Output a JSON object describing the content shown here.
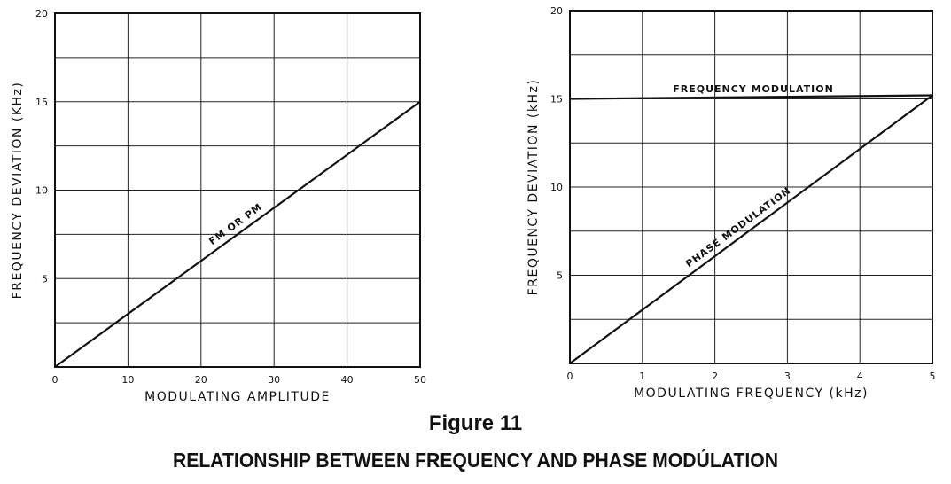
{
  "figure": {
    "number": "Figure 11",
    "title": "RELATIONSHIP BETWEEN FREQUENCY AND PHASE MODÚLATION"
  },
  "chart_data": [
    {
      "type": "line",
      "xlabel": "MODULATING AMPLITUDE",
      "ylabel": "FREQUENCY DEVIATION (KHz)",
      "xlim": [
        0,
        50
      ],
      "ylim": [
        0,
        20
      ],
      "xticks": [
        "0",
        "10",
        "20",
        "30",
        "40",
        "50"
      ],
      "yticks": [
        "5",
        "10",
        "15",
        "20"
      ],
      "grid": true,
      "series": [
        {
          "label": "FM OR PM",
          "x": [
            0,
            50
          ],
          "y": [
            0,
            15
          ]
        }
      ]
    },
    {
      "type": "line",
      "xlabel": "MODULATING FREQUENCY (kHz)",
      "ylabel": "FREQUENCY DEVIATION (kHz)",
      "xlim": [
        0,
        5
      ],
      "ylim": [
        0,
        20
      ],
      "xticks": [
        "0",
        "1",
        "2",
        "3",
        "4",
        "5"
      ],
      "yticks": [
        "5",
        "10",
        "15",
        "20"
      ],
      "grid": true,
      "series": [
        {
          "label": "FREQUENCY MODULATION",
          "x": [
            0,
            5
          ],
          "y": [
            15,
            15.2
          ]
        },
        {
          "label": "PHASE MODULATION",
          "x": [
            0,
            5
          ],
          "y": [
            0,
            15.2
          ]
        }
      ]
    }
  ]
}
